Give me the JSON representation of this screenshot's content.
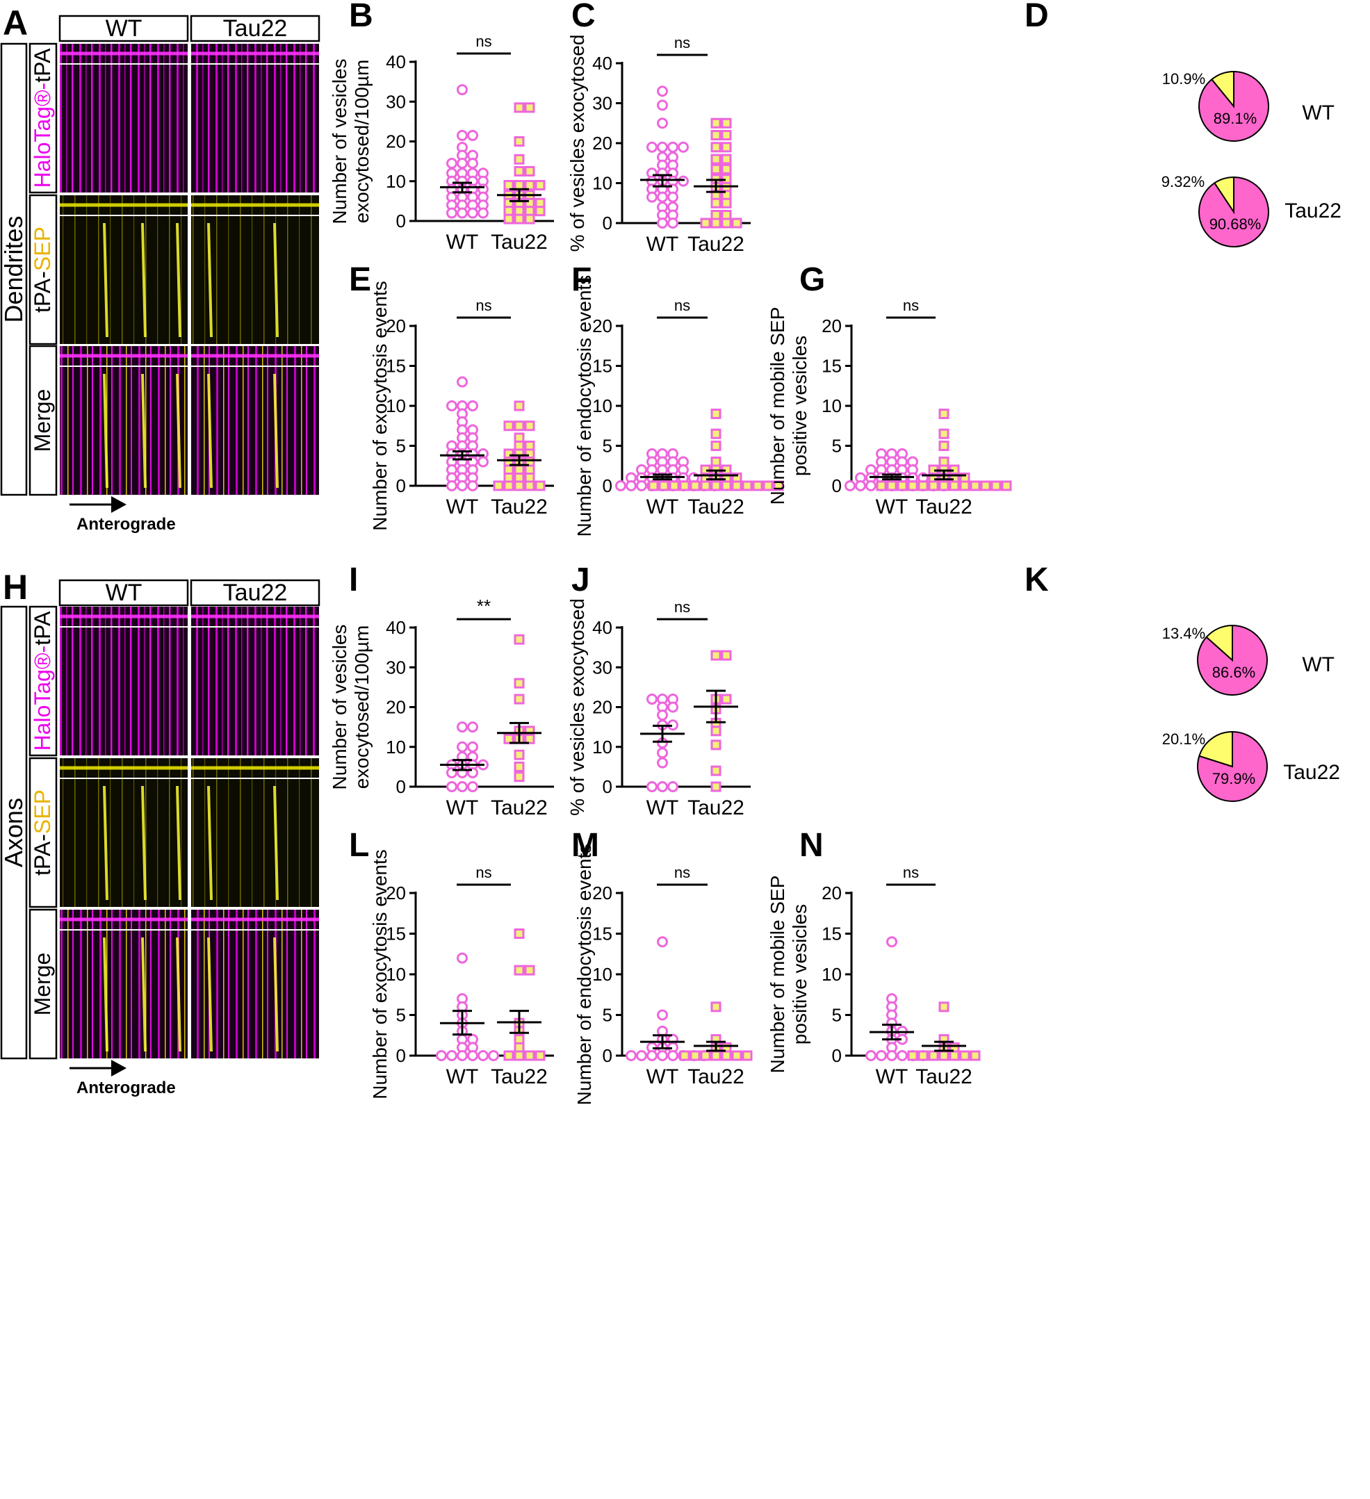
{
  "colors": {
    "magenta": "#ee00ee",
    "marker_fill": "#f4f07a",
    "marker_stroke": "#ee66dd",
    "pie_pink": "#ff66cc",
    "pie_yellow": "#fdfd6e",
    "black": "#000000"
  },
  "kymographs": [
    {
      "panel": "A",
      "section_label": "Dendrites",
      "columns": [
        "WT",
        "Tau22"
      ],
      "channels": [
        {
          "prefix": "HaloTag®-",
          "suffix": "tPA",
          "prefix_color": "magenta"
        },
        {
          "prefix": "tPA-",
          "suffix": "SEP",
          "suffix_color": "yellow"
        },
        {
          "label": "Merge"
        }
      ],
      "arrow_label": "Anterograde"
    },
    {
      "panel": "H",
      "section_label": "Axons",
      "columns": [
        "WT",
        "Tau22"
      ],
      "channels": [
        {
          "prefix": "HaloTag®-",
          "suffix": "tPA",
          "prefix_color": "magenta"
        },
        {
          "prefix": "tPA-",
          "suffix": "SEP",
          "suffix_color": "yellow"
        },
        {
          "label": "Merge"
        }
      ],
      "arrow_label": "Anterograde"
    }
  ],
  "chart_data": [
    {
      "panel": "B",
      "type": "scatter",
      "ylabel": [
        "Number of vesicles",
        "exocytosed/100µm"
      ],
      "ylim": [
        0,
        40
      ],
      "yticks": [
        0,
        10,
        20,
        30,
        40
      ],
      "categories": [
        "WT",
        "Tau22"
      ],
      "significance": "ns",
      "series": [
        {
          "name": "WT",
          "marker": "circle",
          "mean": 8.5,
          "sem_low": 7.2,
          "sem_high": 9.6,
          "values": [
            33,
            21.5,
            20,
            18.5,
            16.5,
            15.5,
            14.5,
            13.5,
            13,
            12,
            11.5,
            11,
            10.5,
            10,
            9.5,
            9,
            8.5,
            8,
            7.5,
            7,
            6.5,
            6,
            5.5,
            5,
            4.5,
            4,
            3.5,
            3,
            2.5,
            2,
            1.5,
            1,
            0.5
          ]
        },
        {
          "name": "Tau22",
          "marker": "square",
          "mean": 6.5,
          "sem_low": 5.0,
          "sem_high": 8.0,
          "values": [
            28.5,
            27.5,
            20,
            15.5,
            12.5,
            12,
            9,
            8.5,
            8,
            7.5,
            6.5,
            6,
            5,
            4.5,
            4,
            3.5,
            3,
            2.5,
            2,
            1.5,
            1,
            0.5,
            0,
            0
          ]
        }
      ]
    },
    {
      "panel": "C",
      "type": "scatter",
      "ylabel": [
        "% of vesicles exocytosed"
      ],
      "ylim": [
        0,
        40
      ],
      "yticks": [
        0,
        10,
        20,
        30,
        40
      ],
      "categories": [
        "WT",
        "Tau22"
      ],
      "significance": "ns",
      "series": [
        {
          "name": "WT",
          "marker": "circle",
          "mean": 10.8,
          "sem_low": 9.2,
          "sem_high": 12.0,
          "values": [
            33,
            29.5,
            25,
            19,
            18,
            16.5,
            15.5,
            14.5,
            13.5,
            12.5,
            12,
            11,
            10.5,
            10,
            9.5,
            9,
            8.5,
            7.5,
            7,
            6.5,
            6,
            5,
            4,
            3,
            2,
            1,
            0,
            0,
            19.5,
            18.5
          ]
        },
        {
          "name": "Tau22",
          "marker": "square",
          "mean": 9.2,
          "sem_low": 7.8,
          "sem_high": 10.8,
          "values": [
            25,
            24,
            22,
            21,
            19,
            17.5,
            16,
            14.5,
            13.5,
            12.5,
            11,
            9.5,
            9,
            8.5,
            7,
            6,
            5,
            3.5,
            2,
            1,
            0,
            0,
            0,
            0
          ]
        }
      ]
    },
    {
      "panel": "E",
      "type": "scatter",
      "ylabel": [
        "Number of exocytosis events"
      ],
      "ylim": [
        0,
        20
      ],
      "yticks": [
        0,
        5,
        10,
        15,
        20
      ],
      "categories": [
        "WT",
        "Tau22"
      ],
      "significance": "ns",
      "series": [
        {
          "name": "WT",
          "marker": "circle",
          "mean": 3.8,
          "sem_low": 3.3,
          "sem_high": 4.3,
          "values": [
            13,
            10,
            10,
            10,
            9,
            8,
            7,
            7,
            6,
            6,
            5,
            5,
            5,
            4,
            4,
            4,
            4,
            3,
            3,
            3,
            3,
            2,
            2,
            2,
            1,
            1,
            1,
            0,
            0,
            0
          ]
        },
        {
          "name": "Tau22",
          "marker": "square",
          "mean": 3.2,
          "sem_low": 2.6,
          "sem_high": 3.8,
          "values": [
            10,
            7.5,
            7,
            7,
            6,
            5,
            5,
            4,
            4,
            4,
            3,
            3,
            3,
            2,
            2,
            2,
            1,
            1,
            1,
            0,
            0,
            0,
            0,
            0
          ]
        }
      ]
    },
    {
      "panel": "F",
      "type": "scatter",
      "ylabel": [
        "Number of endocytosis events"
      ],
      "ylim": [
        0,
        20
      ],
      "yticks": [
        0,
        5,
        10,
        15,
        20
      ],
      "categories": [
        "WT",
        "Tau22"
      ],
      "significance": "ns",
      "series": [
        {
          "name": "WT",
          "marker": "circle",
          "mean": 1.1,
          "sem_low": 0.8,
          "sem_high": 1.4,
          "values": [
            4,
            4,
            4,
            3,
            3,
            3,
            3,
            2,
            2,
            2,
            2,
            2,
            1,
            1,
            1,
            1,
            1,
            1,
            1,
            0,
            0,
            0,
            0,
            0,
            0,
            0,
            0,
            0,
            0
          ]
        },
        {
          "name": "Tau22",
          "marker": "square",
          "mean": 1.3,
          "sem_low": 0.8,
          "sem_high": 1.9,
          "values": [
            9,
            6.5,
            5,
            3,
            2,
            2,
            2,
            1,
            1,
            1,
            1,
            0,
            0,
            0,
            0,
            0,
            0,
            0,
            0,
            0,
            0,
            0,
            0,
            0
          ]
        }
      ]
    },
    {
      "panel": "G",
      "type": "scatter",
      "ylabel": [
        "Number of mobile SEP",
        "positive vesicles"
      ],
      "ylim": [
        0,
        20
      ],
      "yticks": [
        0,
        5,
        10,
        15,
        20
      ],
      "categories": [
        "WT",
        "Tau22"
      ],
      "significance": "ns",
      "series": [
        {
          "name": "WT",
          "marker": "circle",
          "mean": 1.1,
          "sem_low": 0.8,
          "sem_high": 1.4,
          "values": [
            4,
            4,
            4,
            3,
            3,
            3,
            3,
            2,
            2,
            2,
            2,
            2,
            1,
            1,
            1,
            1,
            1,
            1,
            1,
            0,
            0,
            0,
            0,
            0,
            0,
            0,
            0,
            0,
            0
          ]
        },
        {
          "name": "Tau22",
          "marker": "square",
          "mean": 1.3,
          "sem_low": 0.8,
          "sem_high": 1.9,
          "values": [
            9,
            6.5,
            5,
            3,
            2,
            2,
            2,
            1,
            1,
            1,
            1,
            0,
            0,
            0,
            0,
            0,
            0,
            0,
            0,
            0,
            0,
            0,
            0,
            0
          ]
        }
      ]
    },
    {
      "panel": "I",
      "type": "scatter",
      "ylabel": [
        "Number of vesicles",
        "exocytosed/100µm"
      ],
      "ylim": [
        0,
        40
      ],
      "yticks": [
        0,
        10,
        20,
        30,
        40
      ],
      "categories": [
        "WT",
        "Tau22"
      ],
      "significance": "**",
      "series": [
        {
          "name": "WT",
          "marker": "circle",
          "mean": 5.5,
          "sem_low": 4.2,
          "sem_high": 6.7,
          "values": [
            15,
            14.5,
            10,
            8.5,
            7.5,
            6.5,
            5.5,
            5,
            4.5,
            4,
            3.5,
            3,
            2,
            0,
            0,
            0
          ]
        },
        {
          "name": "Tau22",
          "marker": "square",
          "mean": 13.5,
          "sem_low": 11,
          "sem_high": 16,
          "values": [
            37,
            26,
            22,
            14,
            13,
            12,
            11.5,
            11,
            8,
            5,
            2.5
          ]
        }
      ]
    },
    {
      "panel": "J",
      "type": "scatter",
      "ylabel": [
        "% of vesicles exocytosed"
      ],
      "ylim": [
        0,
        40
      ],
      "yticks": [
        0,
        10,
        20,
        30,
        40
      ],
      "categories": [
        "WT",
        "Tau22"
      ],
      "significance": "ns",
      "series": [
        {
          "name": "WT",
          "marker": "circle",
          "mean": 13.3,
          "sem_low": 11.3,
          "sem_high": 15.3,
          "values": [
            22,
            21.5,
            21,
            20,
            19.5,
            18,
            15.5,
            14,
            11,
            8.5,
            6,
            0,
            0,
            0
          ]
        },
        {
          "name": "Tau22",
          "marker": "square",
          "mean": 20.1,
          "sem_low": 16.2,
          "sem_high": 24.1,
          "values": [
            33,
            33,
            22,
            21,
            19.5,
            16,
            14,
            10.5,
            4,
            0
          ]
        }
      ]
    },
    {
      "panel": "L",
      "type": "scatter",
      "ylabel": [
        "Number of exocytosis events"
      ],
      "ylim": [
        0,
        20
      ],
      "yticks": [
        0,
        5,
        10,
        15,
        20
      ],
      "categories": [
        "WT",
        "Tau22"
      ],
      "significance": "ns",
      "series": [
        {
          "name": "WT",
          "marker": "circle",
          "mean": 4.0,
          "sem_low": 2.6,
          "sem_high": 5.5,
          "values": [
            12,
            7,
            6,
            5,
            4,
            3,
            2,
            2,
            1,
            1,
            0,
            0,
            0,
            0,
            0,
            0
          ]
        },
        {
          "name": "Tau22",
          "marker": "square",
          "mean": 4.1,
          "sem_low": 2.8,
          "sem_high": 5.5,
          "values": [
            15,
            10.5,
            10,
            4,
            3,
            2,
            1,
            0,
            0,
            0,
            0
          ]
        }
      ]
    },
    {
      "panel": "M",
      "type": "scatter",
      "ylabel": [
        "Number of endocytosis events"
      ],
      "ylim": [
        0,
        20
      ],
      "yticks": [
        0,
        5,
        10,
        15,
        20
      ],
      "categories": [
        "WT",
        "Tau22"
      ],
      "significance": "ns",
      "series": [
        {
          "name": "WT",
          "marker": "circle",
          "mean": 1.7,
          "sem_low": 0.9,
          "sem_high": 2.5,
          "values": [
            14,
            5,
            3,
            2,
            1.5,
            1,
            1,
            1,
            0,
            0,
            0,
            0,
            0,
            0,
            0,
            0
          ]
        },
        {
          "name": "Tau22",
          "marker": "square",
          "mean": 1.2,
          "sem_low": 0.6,
          "sem_high": 1.7,
          "values": [
            6,
            2,
            1,
            1,
            0,
            0,
            0,
            0,
            0,
            0,
            0
          ]
        }
      ]
    },
    {
      "panel": "N",
      "type": "scatter",
      "ylabel": [
        "Number of mobile SEP",
        "positive vesicles"
      ],
      "ylim": [
        0,
        20
      ],
      "yticks": [
        0,
        5,
        10,
        15,
        20
      ],
      "categories": [
        "WT",
        "Tau22"
      ],
      "significance": "ns",
      "series": [
        {
          "name": "WT",
          "marker": "circle",
          "mean": 2.9,
          "sem_low": 2.0,
          "sem_high": 3.8,
          "values": [
            14,
            7,
            6,
            5,
            4,
            3,
            2.5,
            2,
            1.5,
            1,
            0,
            0,
            0,
            0,
            0,
            0
          ]
        },
        {
          "name": "Tau22",
          "marker": "square",
          "mean": 1.2,
          "sem_low": 0.6,
          "sem_high": 1.7,
          "values": [
            6,
            2,
            1,
            1,
            0,
            0,
            0,
            0,
            0,
            0,
            0
          ]
        }
      ]
    },
    {
      "panel": "D",
      "type": "pie",
      "charts": [
        {
          "name": "WT",
          "slices": [
            {
              "label": "89.1%",
              "value": 89.1
            },
            {
              "label": "10.9%",
              "value": 10.9
            }
          ]
        },
        {
          "name": "Tau22",
          "slices": [
            {
              "label": "90.68%",
              "value": 90.68
            },
            {
              "label": "9.32%",
              "value": 9.32
            }
          ]
        }
      ]
    },
    {
      "panel": "K",
      "type": "pie",
      "charts": [
        {
          "name": "WT",
          "slices": [
            {
              "label": "86.6%",
              "value": 86.6
            },
            {
              "label": "13.4%",
              "value": 13.4
            }
          ]
        },
        {
          "name": "Tau22",
          "slices": [
            {
              "label": "79.9%",
              "value": 79.9
            },
            {
              "label": "20.1%",
              "value": 20.1
            }
          ]
        }
      ]
    }
  ]
}
